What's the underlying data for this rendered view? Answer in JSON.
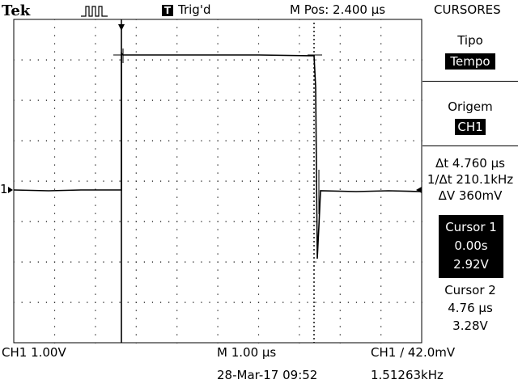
{
  "top_bar": {
    "brand": "Tek",
    "trigger_badge": "T",
    "status": "Trig'd",
    "position": "M Pos: 2.400 µs",
    "menu_title": "CURSORES"
  },
  "menu": {
    "tipo_label": "Tipo",
    "tipo_value": "Tempo",
    "origem_label": "Origem",
    "origem_value": "CH1",
    "delta_t": "Δt 4.760 µs",
    "inv_delta_t": "1/Δt 210.1kHz",
    "delta_v": "ΔV 360mV",
    "cursor1": {
      "label": "Cursor 1",
      "time": "0.00s",
      "volt": "2.92V"
    },
    "cursor2": {
      "label": "Cursor 2",
      "time": "4.76 µs",
      "volt": "3.28V"
    }
  },
  "bottom": {
    "ch1_scale": "CH1  1.00V",
    "timebase": "M 1.00 µs",
    "datetime": "28-Mar-17 09:52",
    "trigger": "CH1 ∕ 42.0mV",
    "frequency": "1.51263kHz"
  },
  "marker_ch1": "1",
  "colors": {
    "background": "#ffffff",
    "trace": "#000000",
    "grid": "#000000"
  }
}
